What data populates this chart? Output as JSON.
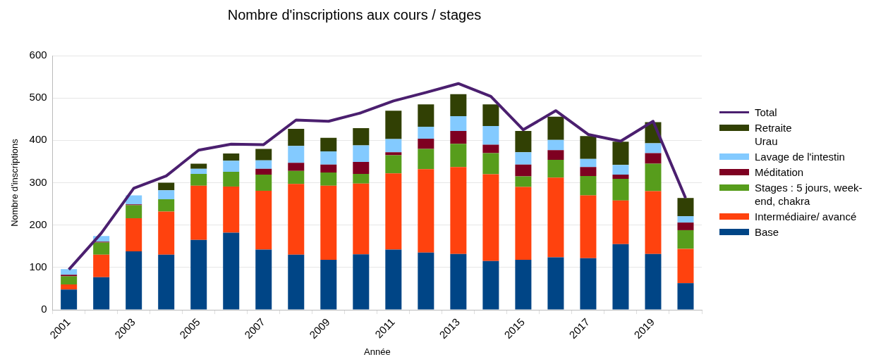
{
  "chart_data": {
    "type": "bar",
    "title": "Nombre d'inscriptions aux cours / stages",
    "xlabel": "Année",
    "ylabel": "Nombre d'inscriptions",
    "categories": [
      "2001",
      null,
      "2003",
      null,
      "2005",
      null,
      "2007",
      null,
      "2009",
      null,
      "2011",
      null,
      "2013",
      null,
      "2015",
      null,
      "2017",
      null,
      "2019",
      null
    ],
    "stacked": true,
    "ylim": [
      0,
      600
    ],
    "yticks": [
      0,
      100,
      200,
      300,
      400,
      500,
      600
    ],
    "grid": "y",
    "legend": "right",
    "series": [
      {
        "name": "Base",
        "color": "#004586",
        "values": [
          48,
          77,
          138,
          130,
          165,
          182,
          142,
          130,
          118,
          131,
          142,
          135,
          132,
          115,
          118,
          124,
          122,
          155,
          132,
          63
        ]
      },
      {
        "name": "Intermédiaire/ avancé",
        "color": "#ff420e",
        "values": [
          12,
          53,
          78,
          102,
          128,
          109,
          139,
          167,
          175,
          167,
          180,
          197,
          205,
          205,
          172,
          188,
          148,
          103,
          148,
          81
        ]
      },
      {
        "name": "Stages : 5 jours, week-end, chakra",
        "color": "#579d1c",
        "values": [
          19,
          29,
          31,
          29,
          28,
          35,
          38,
          31,
          31,
          23,
          43,
          48,
          55,
          50,
          25,
          42,
          46,
          51,
          65,
          44
        ]
      },
      {
        "name": "Méditation",
        "color": "#7e0021",
        "values": [
          4,
          2,
          2,
          0,
          0,
          0,
          14,
          19,
          19,
          28,
          7,
          24,
          30,
          20,
          28,
          23,
          21,
          10,
          25,
          18
        ]
      },
      {
        "name": "Lavage de l'intestin",
        "color": "#83caff",
        "values": [
          13,
          13,
          21,
          21,
          12,
          26,
          20,
          40,
          31,
          39,
          31,
          28,
          35,
          44,
          29,
          24,
          19,
          23,
          23,
          15
        ]
      },
      {
        "name": "Retraite Urau",
        "color": "#314004",
        "values": [
          0,
          0,
          0,
          18,
          12,
          17,
          27,
          40,
          32,
          41,
          67,
          53,
          52,
          51,
          50,
          55,
          54,
          55,
          50,
          43
        ]
      },
      {
        "name": "Total",
        "type": "line",
        "color": "#4b1f6f",
        "values": [
          95,
          181,
          287,
          316,
          377,
          391,
          390,
          448,
          445,
          465,
          493,
          513,
          534,
          504,
          425,
          470,
          414,
          398,
          445,
          264
        ]
      }
    ]
  }
}
